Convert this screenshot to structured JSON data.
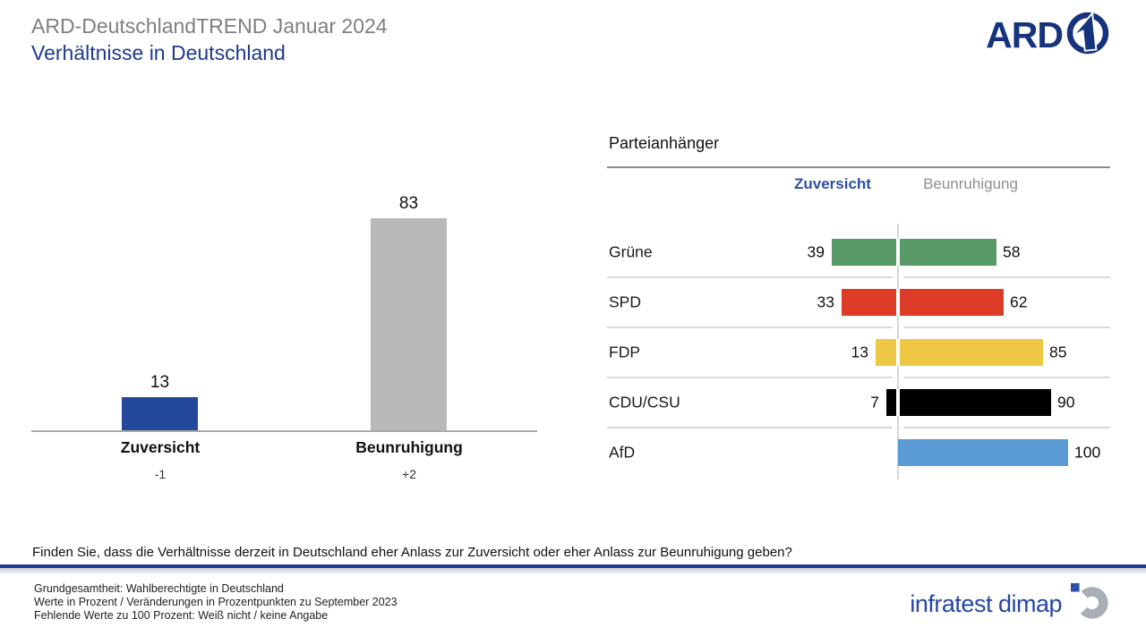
{
  "header": {
    "kicker": "ARD-DeutschlandTREND Januar 2024",
    "title": "Verhältnisse in Deutschland",
    "ard_logo_text": "ARD",
    "ard_logo_icon": "ard-one-circle-icon"
  },
  "colors": {
    "heading_blue": "#1d3a8c",
    "kicker_gray": "#7f7f7f",
    "rule_blue": "#1d3c92",
    "zuversicht_header_blue": "#2c51a0",
    "beunruhigung_header_gray": "#8f8f8f"
  },
  "chart_data": [
    {
      "type": "bar",
      "title": "",
      "categories": [
        "Zuversicht",
        "Beunruhigung"
      ],
      "values": [
        13,
        83
      ],
      "changes": [
        "-1",
        "+2"
      ],
      "colors": [
        "#23489a",
        "#b9b9b9"
      ],
      "ylim": [
        0,
        100
      ],
      "grid": false,
      "notes": "value labels above bars, change vs previous survey below category labels"
    },
    {
      "type": "bar",
      "title": "Parteianhänger",
      "orientation": "horizontal-diverging",
      "col_headers": [
        "Zuversicht",
        "Beunruhigung"
      ],
      "categories": [
        "Grüne",
        "SPD",
        "FDP",
        "CDU/CSU",
        "AfD"
      ],
      "series": [
        {
          "name": "Zuversicht",
          "values": [
            39,
            33,
            13,
            7,
            null
          ]
        },
        {
          "name": "Beunruhigung",
          "values": [
            58,
            62,
            85,
            90,
            100
          ]
        }
      ],
      "colors": [
        "#579a68",
        "#dc3b26",
        "#eec844",
        "#000000",
        "#5b9bd5"
      ],
      "xlim": [
        0,
        100
      ]
    }
  ],
  "question": "Finden Sie, dass die Verhältnisse derzeit in Deutschland eher Anlass zur Zuversicht  oder eher Anlass zur  Beunruhigung  geben?",
  "footer": {
    "lines": [
      "Grundgesamtheit:  Wahlberechtigte  in Deutschland",
      "Werte in Prozent / Veränderungen  in Prozentpunkten  zu  September 2023",
      "Fehlende  Werte zu 100 Prozent:  Weiß nicht / keine Angabe"
    ],
    "brand": "infratest dimap",
    "brand_icon": "infratest-dimap-ring-icon"
  }
}
